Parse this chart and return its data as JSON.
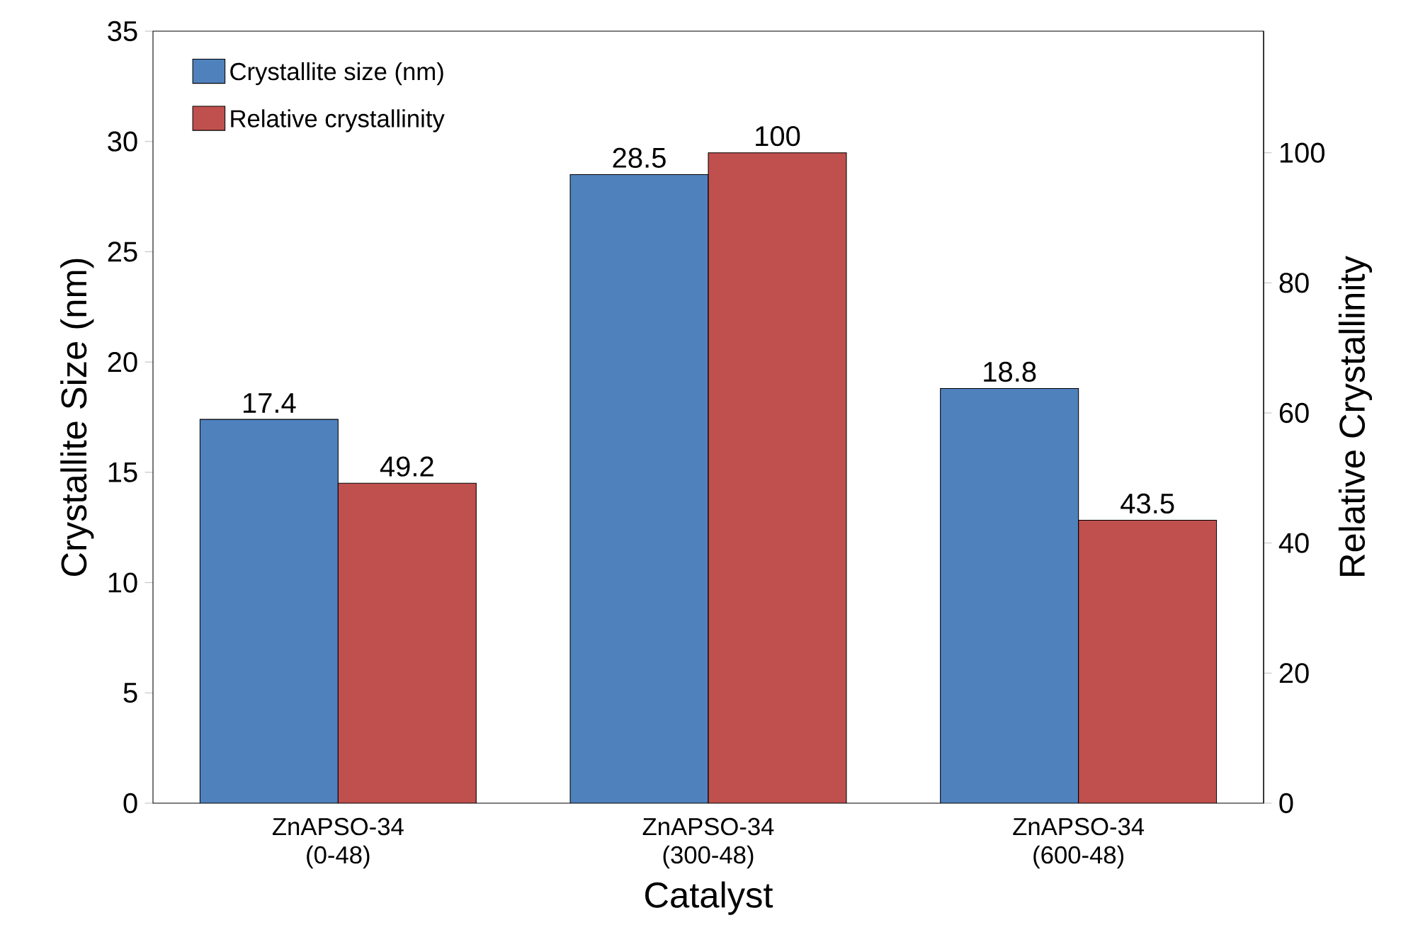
{
  "chart_data": {
    "type": "bar",
    "xlabel": "Catalyst",
    "ylabel": "Crystallite Size (nm)",
    "y2label": "Relative Crystallinity",
    "categories": [
      "ZnAPSO-34 (0-48)",
      "ZnAPSO-34 (300-48)",
      "ZnAPSO-34 (600-48)"
    ],
    "series": [
      {
        "name": "Crystallite size (nm)",
        "color": "#4f81bd",
        "values": [
          17.4,
          28.5,
          18.8
        ]
      },
      {
        "name": "Relative crystallinity",
        "color": "#c0504d",
        "values": [
          49.2,
          100,
          43.5
        ],
        "axis": "y2"
      }
    ],
    "ylim": [
      0,
      35
    ],
    "yticks": [
      0,
      5,
      10,
      15,
      20,
      25,
      30,
      35
    ],
    "y2lim": [
      0,
      118.7
    ],
    "y2ticks": [
      0,
      20,
      40,
      60,
      80,
      100
    ],
    "legend": "top left",
    "data_labels": true
  }
}
